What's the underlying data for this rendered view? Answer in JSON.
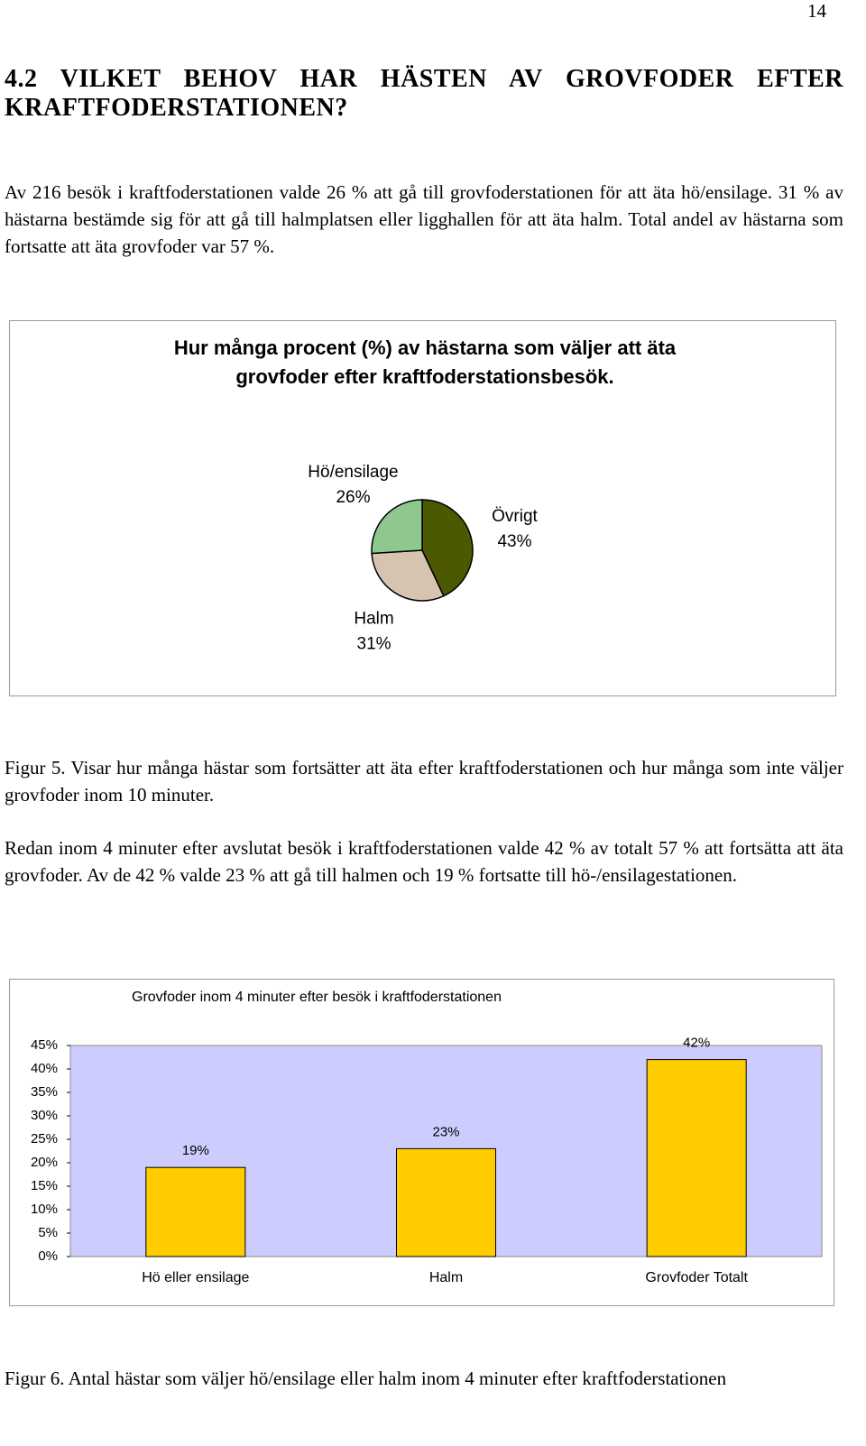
{
  "page_number": "14",
  "heading": "4.2 VILKET BEHOV HAR HÄSTEN AV GROVFODER EFTER KRAFTFODERSTATIONEN?",
  "paragraphs": [
    "Av 216 besök i kraftfoderstationen valde 26 % att gå till grovfoderstationen för att äta hö/ensilage. 31 % av hästarna bestämde sig för att gå till halmplatsen eller ligghallen för att äta halm. Total andel av hästarna som fortsatte att äta grovfoder var 57 %.",
    "Redan inom 4 minuter efter avslutat besök i kraftfoderstationen valde 42 % av totalt 57 % att fortsätta att äta grovfoder. Av de 42 % valde 23 % att gå till halmen och 19 % fortsatte till hö-/ensilagestationen."
  ],
  "captions": [
    "Figur 5. Visar hur många hästar som fortsätter att äta efter kraftfoderstationen och hur många som inte väljer grovfoder inom 10 minuter.",
    "Figur 6. Antal hästar som väljer hö/ensilage eller halm inom 4 minuter efter kraftfoderstationen"
  ],
  "chart_data": [
    {
      "type": "pie",
      "title": "Hur många procent (%) av hästarna som väljer att äta grovfoder efter kraftfoderstationsbesök.",
      "categories": [
        "Övrigt",
        "Halm",
        "Hö/ensilage"
      ],
      "values": [
        43,
        31,
        26
      ],
      "value_labels": [
        "43%",
        "31%",
        "26%"
      ],
      "colors": [
        "#4d5900",
        "#d6c3b0",
        "#8fc88f"
      ]
    },
    {
      "type": "bar",
      "title": "Grovfoder inom 4 minuter efter besök i kraftfoderstationen",
      "categories": [
        "Hö eller ensilage",
        "Halm",
        "Grovfoder Totalt"
      ],
      "values": [
        19,
        23,
        42
      ],
      "value_labels": [
        "19%",
        "23%",
        "42%"
      ],
      "color": "#ffcc00",
      "background": "#ccccff",
      "ylim": [
        0,
        45
      ],
      "yticks": [
        {
          "value": 0,
          "label": "0%"
        },
        {
          "value": 5,
          "label": "5%"
        },
        {
          "value": 10,
          "label": "10%"
        },
        {
          "value": 15,
          "label": "15%"
        },
        {
          "value": 20,
          "label": "20%"
        },
        {
          "value": 25,
          "label": "25%"
        },
        {
          "value": 30,
          "label": "30%"
        },
        {
          "value": 35,
          "label": "35%"
        },
        {
          "value": 40,
          "label": "40%"
        },
        {
          "value": 45,
          "label": "45%"
        }
      ]
    }
  ]
}
